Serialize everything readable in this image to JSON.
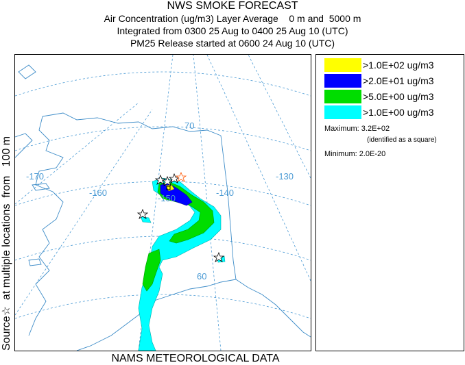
{
  "header": {
    "title": "NWS SMOKE FORECAST",
    "line1": "Air Concentration (ug/m3) Layer Average    0 m and  5000 m",
    "line2": "Integrated from 0300 25 Aug to 0400 25 Aug 10 (UTC)",
    "line3": "PM25 Release started at 0600 24 Aug 10 (UTC)"
  },
  "side_label": "Source☆  at multiple locations  from   100 m",
  "footer": "NAMS METEOROLOGICAL DATA",
  "legend": {
    "items": [
      {
        "label": ">1.0E+02 ug/m3",
        "color": "#ffff00"
      },
      {
        "label": ">2.0E+01 ug/m3",
        "color": "#0000ff"
      },
      {
        "label": ">5.0E+00 ug/m3",
        "color": "#00dd00"
      },
      {
        "label": ">1.0E+00 ug/m3",
        "color": "#00ffff"
      }
    ],
    "maximum": "Maximum: 3.2E+02",
    "maximum_note": "(identified as a square)",
    "minimum": "Minimum: 2.0E-20"
  },
  "map": {
    "graticule_labels": {
      "lon_170": "-170",
      "lon_160": "-160",
      "lon_150": "-150",
      "lon_140": "-140",
      "lon_130": "-130",
      "lat_70": "70",
      "lat_60": "60"
    },
    "colors": {
      "graticule": "#4a9ad4",
      "coast": "#3d8cc8",
      "plume_cyan": "#00ffff",
      "plume_green": "#00dd00",
      "plume_blue": "#0000ff",
      "plume_yellow": "#ffff00"
    }
  }
}
